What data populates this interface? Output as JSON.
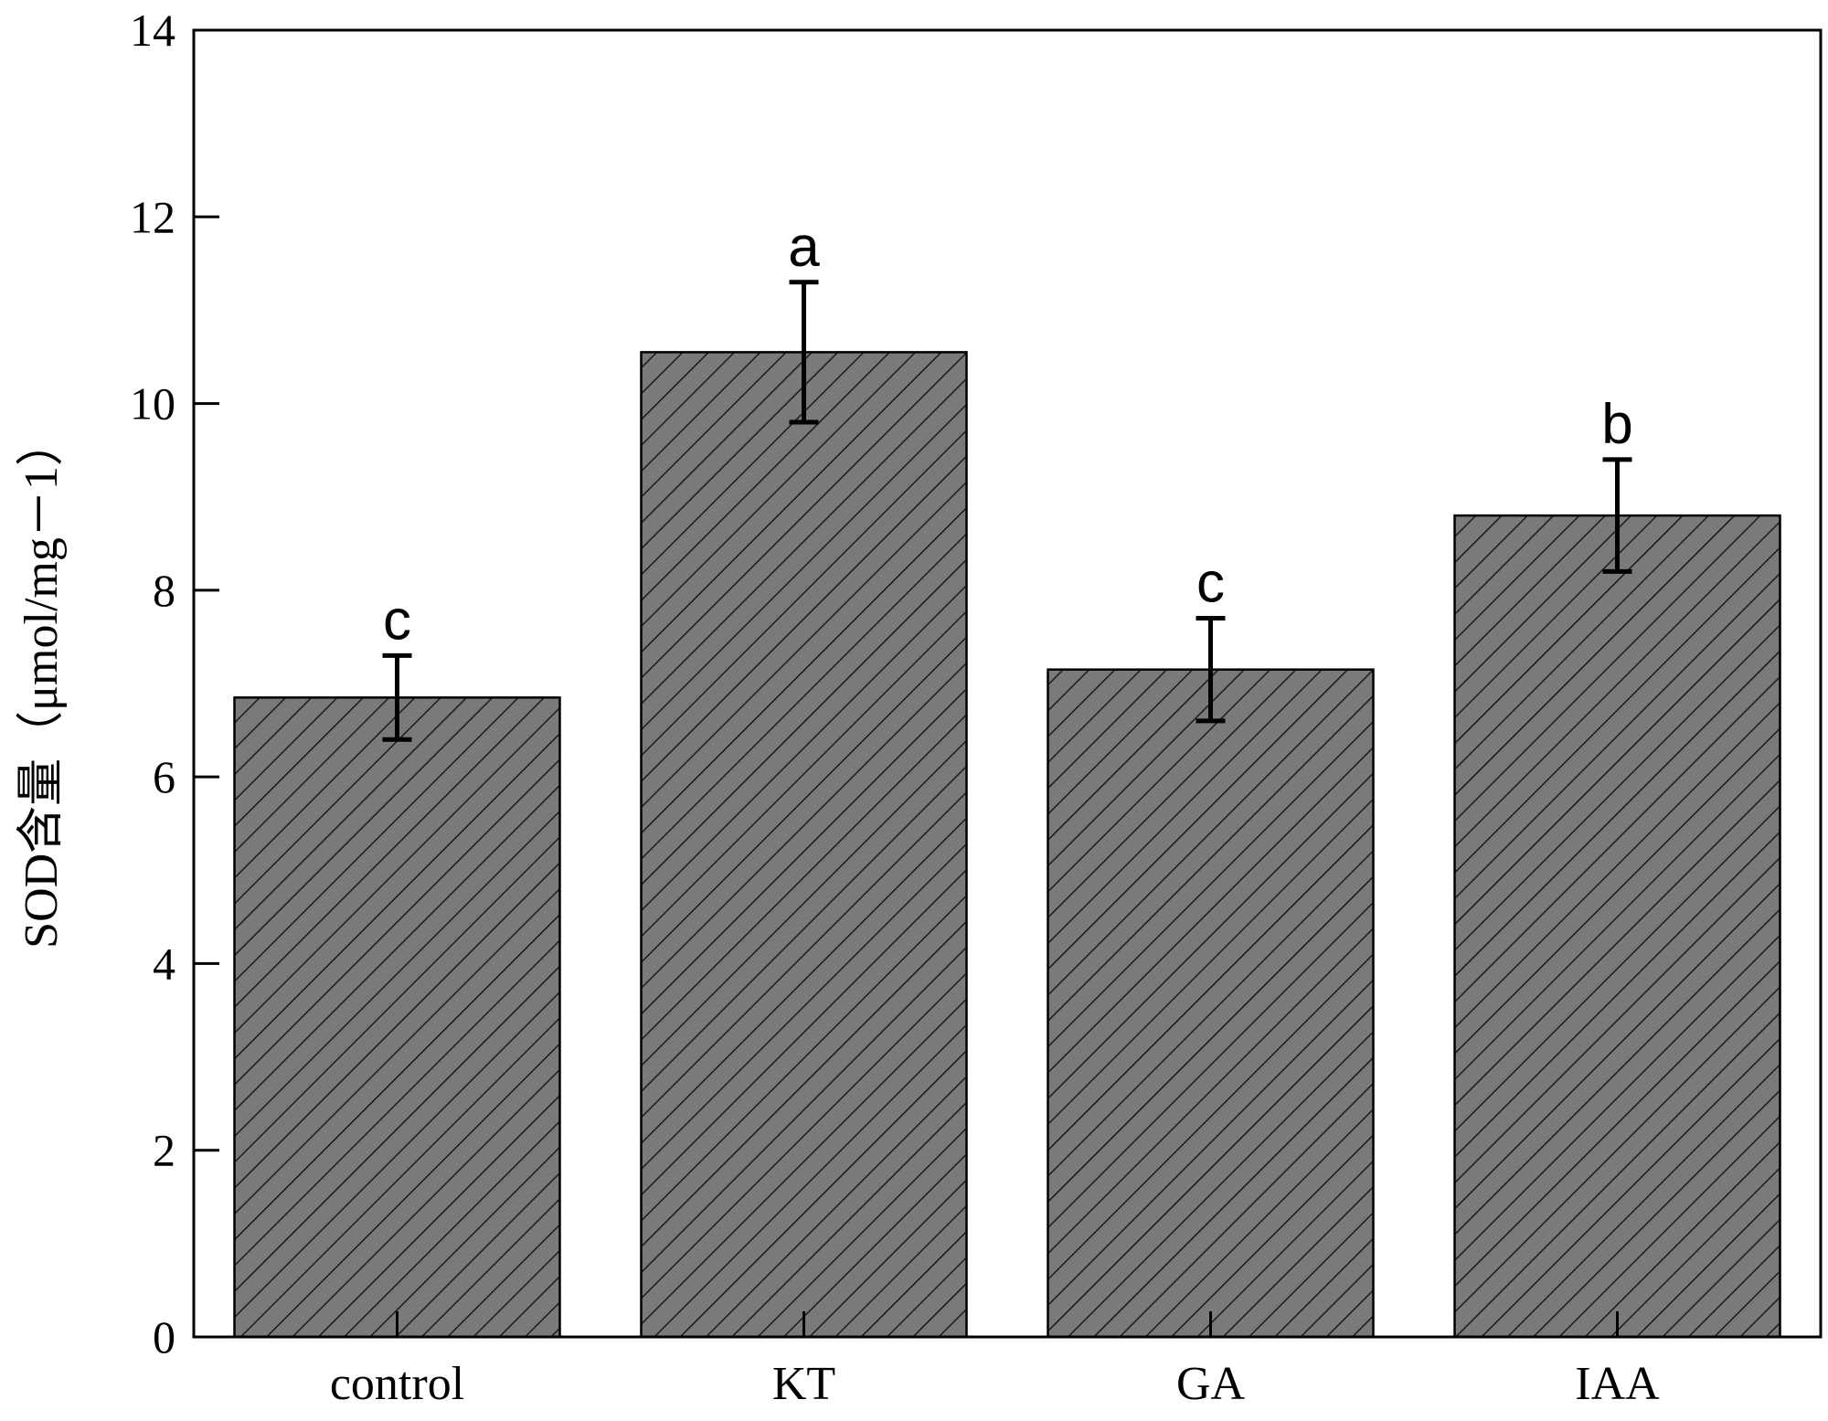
{
  "chart_data": {
    "type": "bar",
    "title": "",
    "xlabel": "",
    "ylabel": "SOD含量（μmol/mg－1）",
    "categories": [
      "control",
      "KT",
      "GA",
      "IAA"
    ],
    "values": [
      6.85,
      10.55,
      7.15,
      8.8
    ],
    "errors": [
      0.45,
      0.75,
      0.55,
      0.6
    ],
    "significance": [
      "c",
      "a",
      "c",
      "b"
    ],
    "ylim": [
      0,
      14
    ],
    "yticks": [
      "0",
      "2",
      "4",
      "6",
      "8",
      "10",
      "12",
      "14"
    ],
    "grid": false,
    "legend": "none",
    "bar_fill": "#7a7a7a",
    "bar_pattern": "diagonal-hatch",
    "bar_edge": "#000000"
  }
}
